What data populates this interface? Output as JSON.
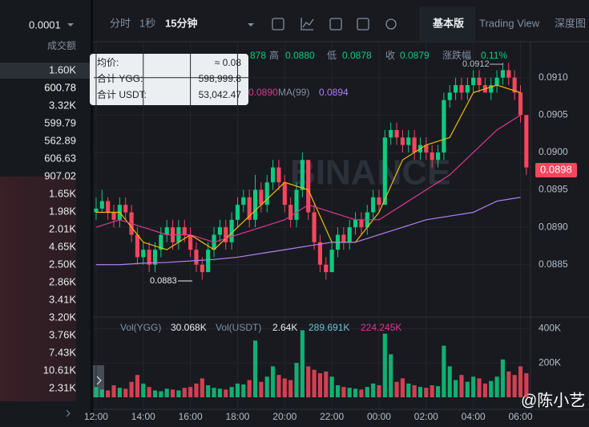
{
  "toolbar": {
    "tabs": [
      "分时",
      "1秒",
      "15分钟"
    ],
    "modes": [
      "基本版",
      "Trading View",
      "深度图"
    ]
  },
  "order_book": {
    "step": "0.0001",
    "header": "成交额",
    "rows": [
      "1.60K",
      "600.78",
      "3.32K",
      "599.79",
      "562.89",
      "606.63",
      "907.02",
      "1.65K",
      "1.98K",
      "2.01K",
      "4.65K",
      "2.50K",
      "2.86K",
      "3.41K",
      "3.20K",
      "3.76K",
      "7.43K",
      "10.61K",
      "2.31K"
    ]
  },
  "tooltip": {
    "rows": [
      [
        "均价:",
        "≈ 0.08"
      ],
      [
        "合计 YGG:",
        "598,999.8"
      ],
      [
        "合计 USDT:",
        "53,042.47"
      ]
    ]
  },
  "chart_data": {
    "type": "candlestick",
    "info": [
      "878",
      "高",
      "0.0880",
      "低",
      "0.0878",
      "收",
      "0.0879",
      "涨跌幅",
      "0.11%"
    ],
    "ma_info": [
      "0.0890",
      "MA(99)",
      "0.0894"
    ],
    "watermark": "BINANCE",
    "last_price": "0.0898",
    "annotations": [
      "0.0912",
      "0.0883"
    ],
    "candles": [
      [
        0.0892,
        0.0894,
        0.0891,
        0.08925
      ],
      [
        0.08925,
        0.0895,
        0.0892,
        0.08935
      ],
      [
        0.08935,
        0.0894,
        0.0891,
        0.0892
      ],
      [
        0.0892,
        0.0893,
        0.089,
        0.0891
      ],
      [
        0.0891,
        0.0894,
        0.089,
        0.0893
      ],
      [
        0.0893,
        0.0894,
        0.0891,
        0.0892
      ],
      [
        0.0892,
        0.0893,
        0.0888,
        0.0889
      ],
      [
        0.0889,
        0.089,
        0.0885,
        0.0886
      ],
      [
        0.0886,
        0.0888,
        0.0885,
        0.0887
      ],
      [
        0.0887,
        0.0888,
        0.0884,
        0.0885
      ],
      [
        0.0885,
        0.0888,
        0.0884,
        0.0887
      ],
      [
        0.0887,
        0.089,
        0.0886,
        0.0889
      ],
      [
        0.0889,
        0.0891,
        0.0888,
        0.089
      ],
      [
        0.089,
        0.0891,
        0.0887,
        0.0888
      ],
      [
        0.0888,
        0.0891,
        0.0887,
        0.089
      ],
      [
        0.089,
        0.0891,
        0.0888,
        0.0889
      ],
      [
        0.0889,
        0.089,
        0.0886,
        0.0887
      ],
      [
        0.0887,
        0.0888,
        0.0884,
        0.0885
      ],
      [
        0.0885,
        0.0886,
        0.0883,
        0.0884
      ],
      [
        0.0884,
        0.0888,
        0.0884,
        0.0887
      ],
      [
        0.0887,
        0.089,
        0.0886,
        0.0889
      ],
      [
        0.0889,
        0.0891,
        0.0888,
        0.089
      ],
      [
        0.089,
        0.0891,
        0.0887,
        0.0888
      ],
      [
        0.0888,
        0.0892,
        0.0887,
        0.0891
      ],
      [
        0.0891,
        0.0894,
        0.089,
        0.0893
      ],
      [
        0.0893,
        0.0895,
        0.0892,
        0.0894
      ],
      [
        0.0894,
        0.0895,
        0.089,
        0.0891
      ],
      [
        0.0891,
        0.0897,
        0.089,
        0.0895
      ],
      [
        0.0895,
        0.0896,
        0.0892,
        0.0893
      ],
      [
        0.0893,
        0.0897,
        0.0892,
        0.0896
      ],
      [
        0.0896,
        0.0899,
        0.0895,
        0.0898
      ],
      [
        0.0898,
        0.0899,
        0.0895,
        0.0896
      ],
      [
        0.0896,
        0.0897,
        0.0892,
        0.0893
      ],
      [
        0.0893,
        0.0894,
        0.089,
        0.0891
      ],
      [
        0.0891,
        0.0896,
        0.089,
        0.0895
      ],
      [
        0.0895,
        0.09,
        0.0894,
        0.0899
      ],
      [
        0.0899,
        0.0899,
        0.0891,
        0.0892
      ],
      [
        0.0892,
        0.0893,
        0.0887,
        0.0888
      ],
      [
        0.0888,
        0.0889,
        0.0884,
        0.0885
      ],
      [
        0.0885,
        0.0886,
        0.0883,
        0.0884
      ],
      [
        0.0884,
        0.0888,
        0.0884,
        0.0887
      ],
      [
        0.0887,
        0.089,
        0.0886,
        0.0889
      ],
      [
        0.0889,
        0.089,
        0.0887,
        0.0888
      ],
      [
        0.0888,
        0.0891,
        0.0887,
        0.089
      ],
      [
        0.089,
        0.0892,
        0.0889,
        0.0891
      ],
      [
        0.0891,
        0.0892,
        0.0889,
        0.089
      ],
      [
        0.089,
        0.0893,
        0.0889,
        0.0892
      ],
      [
        0.0892,
        0.0895,
        0.0891,
        0.0894
      ],
      [
        0.0894,
        0.0895,
        0.0892,
        0.0893
      ],
      [
        0.0893,
        0.0903,
        0.0893,
        0.0902
      ],
      [
        0.0902,
        0.0904,
        0.0901,
        0.0903
      ],
      [
        0.0903,
        0.0904,
        0.0901,
        0.0902
      ],
      [
        0.0902,
        0.0903,
        0.09,
        0.0901
      ],
      [
        0.0901,
        0.0903,
        0.09,
        0.0902
      ],
      [
        0.0902,
        0.0903,
        0.0899,
        0.09
      ],
      [
        0.09,
        0.0902,
        0.0899,
        0.0901
      ],
      [
        0.0901,
        0.0902,
        0.0899,
        0.09
      ],
      [
        0.09,
        0.0901,
        0.0898,
        0.0899
      ],
      [
        0.0899,
        0.0901,
        0.0898,
        0.09
      ],
      [
        0.09,
        0.0908,
        0.0899,
        0.0907
      ],
      [
        0.0907,
        0.0909,
        0.0906,
        0.0908
      ],
      [
        0.0908,
        0.091,
        0.0907,
        0.0909
      ],
      [
        0.0909,
        0.091,
        0.0907,
        0.0908
      ],
      [
        0.0908,
        0.091,
        0.0907,
        0.0909
      ],
      [
        0.0909,
        0.0911,
        0.0908,
        0.091
      ],
      [
        0.091,
        0.0911,
        0.0908,
        0.0909
      ],
      [
        0.0909,
        0.091,
        0.0908,
        0.0908
      ],
      [
        0.0908,
        0.091,
        0.0907,
        0.0909
      ],
      [
        0.0909,
        0.0911,
        0.0908,
        0.091
      ],
      [
        0.091,
        0.0912,
        0.0909,
        0.0911
      ],
      [
        0.0911,
        0.0912,
        0.0909,
        0.091
      ],
      [
        0.091,
        0.0911,
        0.0907,
        0.0908
      ],
      [
        0.0908,
        0.0909,
        0.0904,
        0.0905
      ],
      [
        0.0905,
        0.0905,
        0.0897,
        0.0898
      ]
    ],
    "xlim": [
      -0.4,
      73.7
    ],
    "ylim": [
      0.0878,
      0.09148
    ],
    "yticks": [
      {
        "value": 0.091,
        "label": "0.0910"
      },
      0.0905,
      {
        "value": 0.09,
        "label": "0.0900"
      },
      0.0895,
      {
        "value": 0.089,
        "label": "0.0890"
      },
      0.0885
    ],
    "xticks": [
      {
        "value": 0,
        "label": "12:00"
      },
      {
        "value": 8,
        "label": "14:00"
      },
      {
        "value": 16,
        "label": "16:00"
      },
      {
        "value": 24,
        "label": "18:00"
      },
      {
        "value": 32,
        "label": "20:00"
      },
      {
        "value": 40,
        "label": "22:00"
      },
      {
        "value": 48,
        "label": "00:00"
      },
      {
        "value": 56,
        "label": "02:00"
      },
      {
        "value": 64,
        "label": "04:00"
      },
      {
        "value": 72,
        "label": "06:00"
      }
    ],
    "ma_x": [
      0,
      4,
      8,
      12,
      16,
      20,
      24,
      28,
      32,
      36,
      40,
      44,
      48,
      52,
      56,
      60,
      64,
      68,
      72
    ],
    "ma": [
      {
        "color": "#f0b90b",
        "values": [
          0.0892,
          0.0892,
          0.0888,
          0.0887,
          0.0889,
          0.0887,
          0.089,
          0.0893,
          0.0896,
          0.0895,
          0.0888,
          0.0888,
          0.0892,
          0.0899,
          0.0901,
          0.0902,
          0.0908,
          0.0909,
          0.0908
        ]
      },
      {
        "color": "#e0378f",
        "values": [
          0.089,
          0.0891,
          0.089,
          0.0889,
          0.0889,
          0.0888,
          0.0889,
          0.089,
          0.0891,
          0.0893,
          0.0892,
          0.0891,
          0.0891,
          0.0893,
          0.0895,
          0.0897,
          0.09,
          0.0903,
          0.0905
        ]
      },
      {
        "color": "#b47ff0",
        "values": [
          0.0885,
          0.0885,
          0.08852,
          0.08853,
          0.08855,
          0.08857,
          0.0886,
          0.08865,
          0.0887,
          0.08875,
          0.0888,
          0.0888,
          0.0889,
          0.089,
          0.0891,
          0.08915,
          0.0892,
          0.08935,
          0.0894
        ]
      }
    ],
    "volume_info": [
      "Vol(YGG)",
      "30.068K",
      "Vol(USDT)",
      "2.64K",
      "289.691K",
      "224.245K"
    ],
    "volume": {
      "values": [
        60,
        45,
        40,
        70,
        55,
        50,
        90,
        130,
        80,
        60,
        40,
        35,
        50,
        45,
        40,
        55,
        60,
        80,
        110,
        70,
        55,
        50,
        45,
        60,
        80,
        75,
        100,
        330,
        90,
        120,
        180,
        130,
        110,
        100,
        200,
        390,
        180,
        160,
        140,
        150,
        120,
        70,
        60,
        55,
        50,
        45,
        60,
        80,
        70,
        370,
        250,
        90,
        110,
        80,
        70,
        60,
        55,
        70,
        65,
        300,
        180,
        100,
        130,
        90,
        120,
        110,
        80,
        95,
        120,
        220,
        150,
        130,
        180,
        140
      ],
      "ylim": [
        0,
        420
      ],
      "yticks": [
        {
          "value": 400,
          "label": "400K"
        },
        {
          "value": 200,
          "label": "200K"
        }
      ]
    }
  },
  "watermark": "@陈小艺"
}
